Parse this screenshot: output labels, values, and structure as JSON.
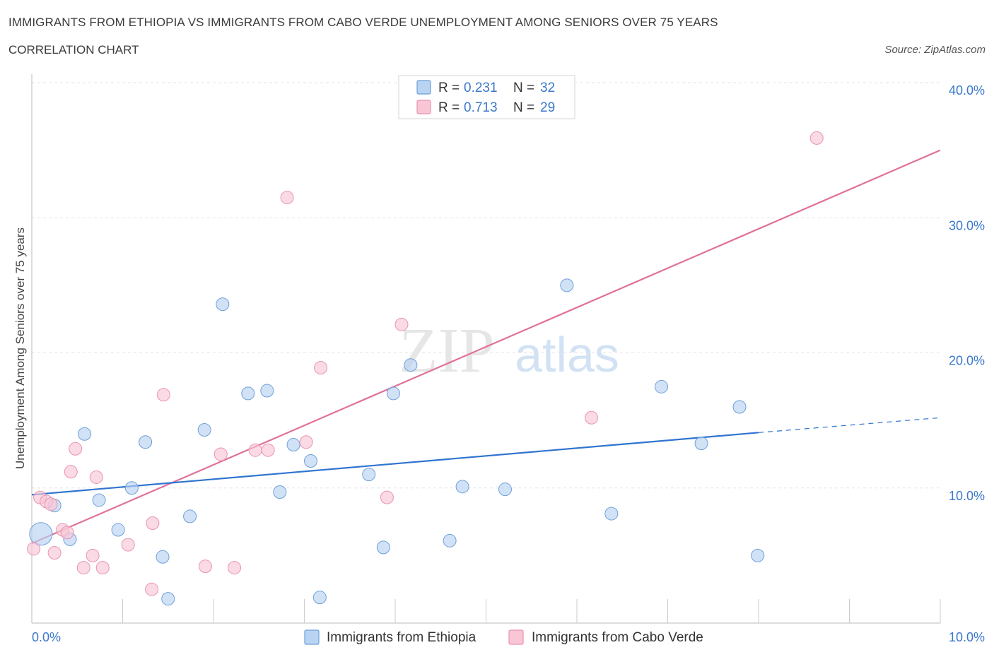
{
  "header": {
    "title": "IMMIGRANTS FROM ETHIOPIA VS IMMIGRANTS FROM CABO VERDE UNEMPLOYMENT AMONG SENIORS OVER 75 YEARS",
    "subtitle": "CORRELATION CHART",
    "source": "Source: ZipAtlas.com"
  },
  "colors": {
    "ethiopia_fill": "#b9d3f3",
    "ethiopia_stroke": "#6f9fd8",
    "ethiopia_line": "#2f74d0",
    "caboverde_fill": "#f8c6d5",
    "caboverde_stroke": "#e993af",
    "caboverde_line": "#e0719a",
    "tick_label": "#3a78cc",
    "grid": "#e3e3e3"
  },
  "chart_data": {
    "type": "scatter",
    "title": "IMMIGRANTS FROM ETHIOPIA VS IMMIGRANTS FROM CABO VERDE UNEMPLOYMENT AMONG SENIORS OVER 75 YEARS",
    "subtitle": "CORRELATION CHART",
    "xlabel": "",
    "ylabel": "Unemployment Among Seniors over 75 years",
    "xlim": [
      0,
      10
    ],
    "ylim": [
      0,
      40
    ],
    "x_tick_labels": [
      "0.0%",
      "10.0%"
    ],
    "y_ticks": [
      10,
      20,
      30,
      40
    ],
    "y_tick_labels": [
      "10.0%",
      "20.0%",
      "30.0%",
      "40.0%"
    ],
    "grid": true,
    "legend_position": "top-center",
    "watermark": [
      "ZIP",
      "atlas"
    ],
    "stats": [
      {
        "r_label": "R =",
        "r_value": "0.231",
        "n_label": "N =",
        "n_value": "32"
      },
      {
        "r_label": "R =",
        "r_value": "0.713",
        "n_label": "N =",
        "n_value": "29"
      }
    ],
    "series": [
      {
        "name": "Immigrants from Ethiopia",
        "color": "#b9d3f3",
        "points": [
          [
            0.1,
            6.6,
            2
          ],
          [
            0.25,
            8.7,
            1
          ],
          [
            0.42,
            6.2,
            1
          ],
          [
            0.58,
            14.0,
            1
          ],
          [
            0.74,
            9.1,
            1
          ],
          [
            0.95,
            6.9,
            1
          ],
          [
            1.1,
            10.0,
            1
          ],
          [
            1.25,
            13.4,
            1
          ],
          [
            1.44,
            4.9,
            1
          ],
          [
            1.5,
            1.8,
            1
          ],
          [
            1.74,
            7.9,
            1
          ],
          [
            1.9,
            14.3,
            1
          ],
          [
            2.1,
            23.6,
            1
          ],
          [
            2.38,
            17.0,
            1
          ],
          [
            2.59,
            17.2,
            1
          ],
          [
            2.73,
            9.7,
            1
          ],
          [
            2.88,
            13.2,
            1
          ],
          [
            3.07,
            12.0,
            1
          ],
          [
            3.17,
            1.9,
            1
          ],
          [
            3.71,
            11.0,
            1
          ],
          [
            3.87,
            5.6,
            1
          ],
          [
            3.98,
            17.0,
            1
          ],
          [
            4.17,
            19.1,
            1
          ],
          [
            4.6,
            6.1,
            1
          ],
          [
            4.74,
            10.1,
            1
          ],
          [
            5.21,
            9.9,
            1
          ],
          [
            5.89,
            25.0,
            1
          ],
          [
            6.38,
            8.1,
            1
          ],
          [
            6.93,
            17.5,
            1
          ],
          [
            7.37,
            13.3,
            1
          ],
          [
            7.79,
            16.0,
            1
          ],
          [
            7.99,
            5.0,
            1
          ]
        ],
        "trend": {
          "x0": 0,
          "y0": 9.5,
          "x1": 8.0,
          "y1": 14.1,
          "dash_x1": 10.0,
          "dash_y1": 15.2
        }
      },
      {
        "name": "Immigrants from Cabo Verde",
        "color": "#f8c6d5",
        "points": [
          [
            0.02,
            5.5,
            1
          ],
          [
            0.09,
            9.3,
            1
          ],
          [
            0.16,
            9.0,
            1
          ],
          [
            0.21,
            8.8,
            1
          ],
          [
            0.25,
            5.2,
            1
          ],
          [
            0.34,
            6.9,
            1
          ],
          [
            0.39,
            6.7,
            1
          ],
          [
            0.43,
            11.2,
            1
          ],
          [
            0.48,
            12.9,
            1
          ],
          [
            0.57,
            4.1,
            1
          ],
          [
            0.67,
            5.0,
            1
          ],
          [
            0.71,
            10.8,
            1
          ],
          [
            0.78,
            4.1,
            1
          ],
          [
            1.06,
            5.8,
            1
          ],
          [
            1.32,
            2.5,
            1
          ],
          [
            1.33,
            7.4,
            1
          ],
          [
            1.45,
            16.9,
            1
          ],
          [
            1.91,
            4.2,
            1
          ],
          [
            2.08,
            12.5,
            1
          ],
          [
            2.23,
            4.1,
            1
          ],
          [
            2.46,
            12.8,
            1
          ],
          [
            2.6,
            12.8,
            1
          ],
          [
            2.81,
            31.5,
            1
          ],
          [
            3.02,
            13.4,
            1
          ],
          [
            3.18,
            18.9,
            1
          ],
          [
            3.91,
            9.3,
            1
          ],
          [
            4.07,
            22.1,
            1
          ],
          [
            6.16,
            15.2,
            1
          ],
          [
            8.64,
            35.9,
            1
          ]
        ],
        "trend": {
          "x0": 0,
          "y0": 5.9,
          "x1": 10.0,
          "y1": 35.0
        }
      }
    ]
  }
}
